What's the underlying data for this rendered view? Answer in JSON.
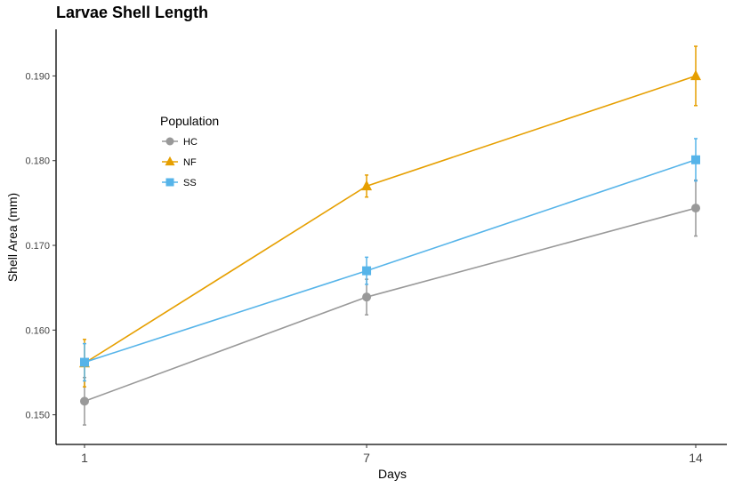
{
  "chart_data": {
    "type": "line",
    "title": "Larvae Shell Length",
    "xlabel": "Days",
    "ylabel": "Shell Area (mm)",
    "x": [
      1,
      7,
      14
    ],
    "x_tick_labels": [
      "1",
      "7",
      "14"
    ],
    "ylim": [
      0.1465,
      0.1955
    ],
    "y_ticks": [
      0.15,
      0.16,
      0.17,
      0.18,
      0.19
    ],
    "y_tick_labels": [
      "0.150",
      "0.160",
      "0.170",
      "0.180",
      "0.190"
    ],
    "grid": false,
    "legend": {
      "title": "Population",
      "placement": "top-left"
    },
    "series": [
      {
        "name": "HC",
        "color": "#999999",
        "marker": "circle",
        "values": [
          0.1516,
          0.1639,
          0.1744
        ],
        "error": [
          0.0028,
          0.0021,
          0.0033
        ]
      },
      {
        "name": "NF",
        "color": "#E69F00",
        "marker": "triangle",
        "values": [
          0.1561,
          0.177,
          0.19
        ],
        "error": [
          0.0028,
          0.0013,
          0.0035
        ]
      },
      {
        "name": "SS",
        "color": "#56B4E9",
        "marker": "square",
        "values": [
          0.1562,
          0.167,
          0.1801
        ],
        "error": [
          0.0022,
          0.0016,
          0.0025
        ]
      }
    ]
  }
}
